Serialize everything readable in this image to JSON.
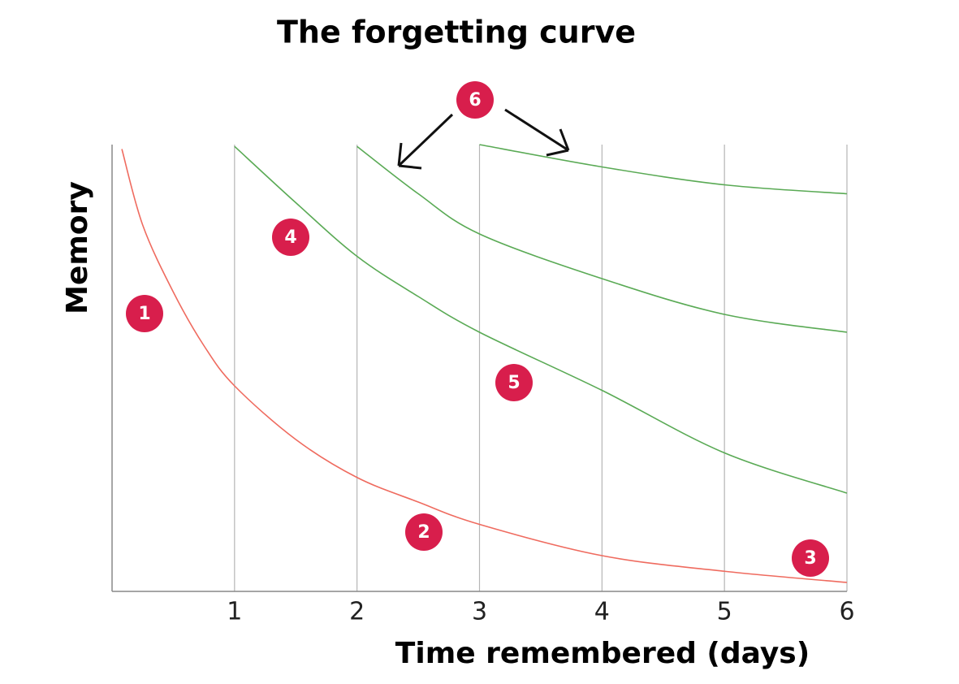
{
  "chart_data": {
    "type": "line",
    "title": "The forgetting curve",
    "x_label": "Time remembered (days)",
    "y_label": "Memory",
    "xlim": [
      0,
      6
    ],
    "ylim": [
      0,
      100
    ],
    "xticks": [
      1,
      2,
      3,
      4,
      5,
      6
    ],
    "grid": true,
    "series": [
      {
        "color": "#ef6b5f",
        "x": [
          0.08,
          0.25,
          0.5,
          0.75,
          1,
          1.5,
          2,
          2.5,
          3,
          4,
          5,
          6
        ],
        "values": [
          99,
          82,
          67,
          55,
          46,
          34,
          25.5,
          20,
          15,
          8,
          4.5,
          2
        ]
      },
      {
        "color": "#5aaa55",
        "x": [
          1,
          1.5,
          2,
          2.5,
          3,
          4,
          5,
          6
        ],
        "values": [
          99.6,
          87,
          75,
          66,
          58,
          45,
          31,
          22
        ]
      },
      {
        "color": "#5aaa55",
        "x": [
          2,
          2.5,
          3,
          4,
          5,
          6
        ],
        "values": [
          99.6,
          89,
          80,
          70,
          62,
          58
        ]
      },
      {
        "color": "#5aaa55",
        "x": [
          3,
          4,
          5,
          6
        ],
        "values": [
          100,
          95,
          91,
          89
        ]
      }
    ],
    "annotations": [
      "1",
      "2",
      "3",
      "4",
      "5",
      "6"
    ]
  }
}
